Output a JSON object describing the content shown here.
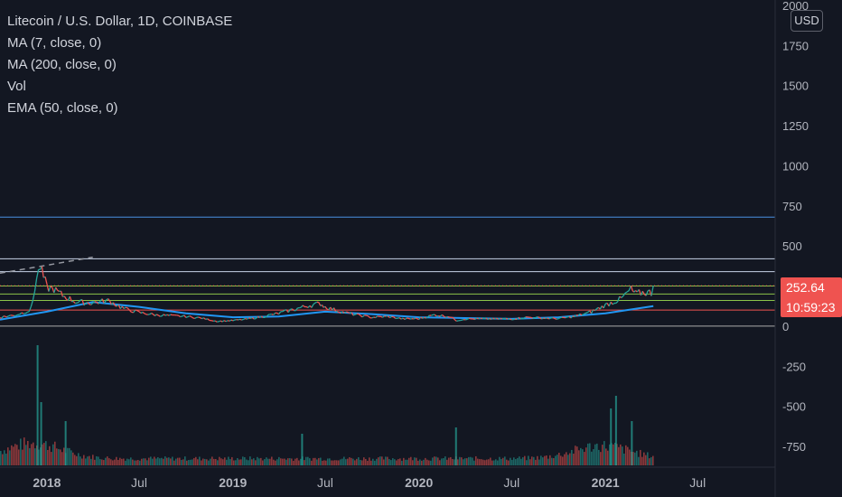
{
  "legend": {
    "symbol": "Litecoin / U.S. Dollar, 1D, COINBASE",
    "ma7": "MA (7, close, 0)",
    "ma200": "MA (200, close, 0)",
    "vol": "Vol",
    "ema50": "EMA (50, close, 0)"
  },
  "currency": "USD",
  "last_price_label": "252.64",
  "countdown_label": "10:59:23",
  "colors": {
    "background": "#131722",
    "axis_text": "#b2b5be",
    "up": "#26a69a",
    "down": "#ef5350",
    "ema": "#2196f3",
    "ma200": "#1e88e5",
    "ma7": "#9598a1",
    "hline_blue": "#4a90e2",
    "hline_light": "#c7d3e8",
    "hline_green": "#8bc34a",
    "hline_red": "#ef5350",
    "hline_gray": "#aaaaaa"
  },
  "chart_data": {
    "type": "line",
    "title": "Litecoin / U.S. Dollar, 1D, COINBASE",
    "x_ticks": [
      "2018",
      "Jul",
      "2019",
      "Jul",
      "2020",
      "Jul",
      "2021",
      "Jul"
    ],
    "x_tick_dates": [
      "2018-01-01",
      "2018-07-01",
      "2019-01-01",
      "2019-07-01",
      "2020-01-01",
      "2020-07-01",
      "2021-01-01",
      "2021-07-01"
    ],
    "x_range": [
      "2017-10-01",
      "2021-11-30"
    ],
    "y_ticks": [
      2000,
      1750,
      1500,
      1250,
      1000,
      750,
      500,
      250,
      0,
      -250,
      -500,
      -750
    ],
    "ylim": [
      -850,
      2000
    ],
    "grid": false,
    "last_price": 252.64,
    "price_series": {
      "name": "Litecoin / U.S. Dollar",
      "x": [
        "2017-10-01",
        "2017-11-01",
        "2017-12-01",
        "2017-12-12",
        "2017-12-19",
        "2018-01-01",
        "2018-01-15",
        "2018-02-01",
        "2018-03-01",
        "2018-04-01",
        "2018-05-01",
        "2018-06-01",
        "2018-07-01",
        "2018-08-01",
        "2018-09-01",
        "2018-10-01",
        "2018-11-01",
        "2018-12-01",
        "2019-01-01",
        "2019-02-01",
        "2019-03-01",
        "2019-04-01",
        "2019-05-01",
        "2019-06-01",
        "2019-06-22",
        "2019-07-01",
        "2019-08-01",
        "2019-09-01",
        "2019-10-01",
        "2019-11-01",
        "2019-12-01",
        "2020-01-01",
        "2020-02-01",
        "2020-03-01",
        "2020-03-15",
        "2020-04-01",
        "2020-05-01",
        "2020-06-01",
        "2020-07-01",
        "2020-08-01",
        "2020-09-01",
        "2020-10-01",
        "2020-11-01",
        "2020-12-01",
        "2021-01-01",
        "2021-01-15",
        "2021-02-01",
        "2021-02-20",
        "2021-03-01",
        "2021-03-15",
        "2021-04-01",
        "2021-04-05"
      ],
      "values": [
        55,
        70,
        100,
        300,
        370,
        240,
        230,
        190,
        150,
        145,
        160,
        110,
        85,
        70,
        65,
        60,
        50,
        30,
        35,
        45,
        60,
        80,
        105,
        130,
        140,
        120,
        90,
        70,
        55,
        60,
        45,
        47,
        70,
        60,
        35,
        45,
        45,
        45,
        45,
        55,
        50,
        47,
        60,
        85,
        130,
        150,
        170,
        230,
        200,
        210,
        210,
        252.64
      ]
    },
    "ma7_dashed": {
      "x": [
        "2017-10-01",
        "2018-01-01",
        "2018-04-01"
      ],
      "values": [
        330,
        380,
        430
      ]
    },
    "ema50": {
      "name": "EMA (50, close, 0)",
      "x": [
        "2017-10-01",
        "2018-01-01",
        "2018-04-01",
        "2018-07-01",
        "2018-10-01",
        "2019-01-01",
        "2019-04-01",
        "2019-07-01",
        "2019-10-01",
        "2020-01-01",
        "2020-04-01",
        "2020-07-01",
        "2020-10-01",
        "2021-01-01",
        "2021-04-05"
      ],
      "values": [
        40,
        90,
        150,
        120,
        80,
        55,
        60,
        90,
        75,
        55,
        50,
        45,
        55,
        80,
        125
      ]
    },
    "horizontal_levels": [
      {
        "value": 680,
        "color": "blue"
      },
      {
        "value": 420,
        "color": "light"
      },
      {
        "value": 340,
        "color": "light"
      },
      {
        "value": 250,
        "color": "green"
      },
      {
        "value": 200,
        "color": "green"
      },
      {
        "value": 160,
        "color": "green"
      },
      {
        "value": 100,
        "color": "red"
      },
      {
        "value": 0,
        "color": "gray"
      }
    ],
    "volume_spikes": [
      {
        "date": "2017-12-12",
        "value": 0.95
      },
      {
        "date": "2017-12-19",
        "value": 0.5
      },
      {
        "date": "2018-02-05",
        "value": 0.35
      },
      {
        "date": "2019-05-15",
        "value": 0.25
      },
      {
        "date": "2020-03-12",
        "value": 0.3
      },
      {
        "date": "2021-01-10",
        "value": 0.45
      },
      {
        "date": "2021-01-20",
        "value": 0.55
      },
      {
        "date": "2021-02-20",
        "value": 0.35
      }
    ]
  }
}
